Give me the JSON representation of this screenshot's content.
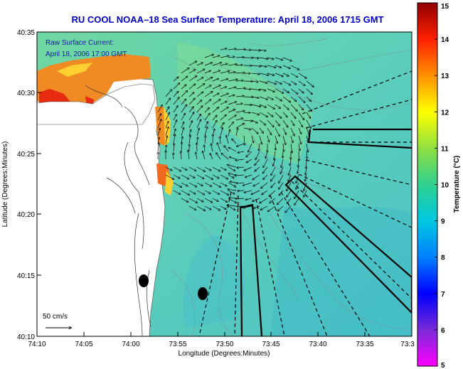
{
  "title": "RU COOL  NOAA–18  Sea Surface Temperature:  April 18, 2006 1715 GMT",
  "current_legend": {
    "line1": "Raw Surface Current:",
    "line2": "April 18, 2006 17:00 GMT"
  },
  "scale": {
    "label": "50 cm/s"
  },
  "axes": {
    "xlabel": "Longitude (Degrees:Minutes)",
    "ylabel": "Latitude (Degrees:Minutes)",
    "xticks": [
      "74:10",
      "74:05",
      "74:00",
      "73:55",
      "73:50",
      "73:45",
      "73:40",
      "73:35",
      "73:3"
    ],
    "yticks": [
      "40:35",
      "40:30",
      "40:25",
      "40:20",
      "40:15",
      "40:10"
    ]
  },
  "colorbar": {
    "label": "Temperature (°C)",
    "min": 5,
    "max": 15,
    "ticks": [
      "15",
      "14",
      "13",
      "12",
      "11",
      "10",
      "9",
      "8",
      "7",
      "6",
      "5"
    ]
  },
  "colors": {
    "ocean": "#5ec8b2",
    "land": "#ffffff",
    "warm": "#f07a22",
    "vectors": "#000000",
    "title": "#0000c8"
  }
}
